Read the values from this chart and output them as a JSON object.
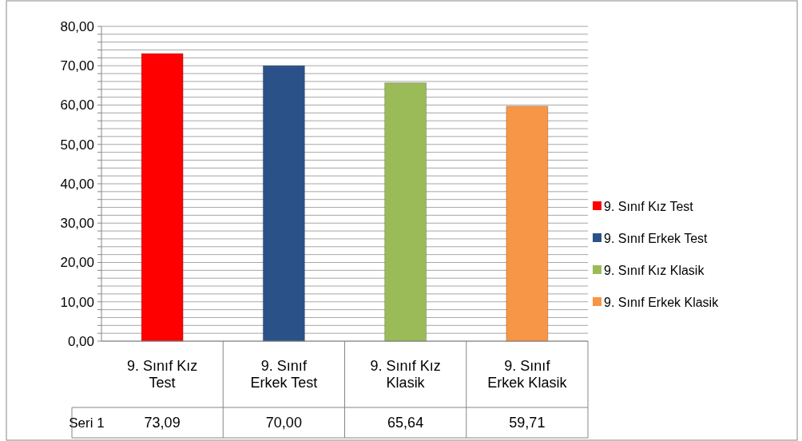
{
  "chart_data": {
    "type": "bar",
    "categories": [
      "9. Sınıf Kız Test",
      "9. Sınıf Erkek Test",
      "9. Sınıf Kız Klasik",
      "9. Sınıf Erkek Klasik"
    ],
    "colors": [
      "#ff0000",
      "#2a5289",
      "#9bbb59",
      "#f79646"
    ],
    "values": [
      73.09,
      70.0,
      65.64,
      59.71
    ],
    "value_labels": [
      "73,09",
      "70,00",
      "65,64",
      "59,71"
    ],
    "annotations": [
      "Seri 1"
    ],
    "ylim": [
      0,
      80
    ],
    "yticks": [
      {
        "value": 0,
        "label": "0,00"
      },
      {
        "value": 2,
        "label": null
      },
      {
        "value": 4,
        "label": null
      },
      {
        "value": 6,
        "label": null
      },
      {
        "value": 8,
        "label": null
      },
      {
        "value": 10,
        "label": "10,00"
      },
      {
        "value": 12,
        "label": null
      },
      {
        "value": 14,
        "label": null
      },
      {
        "value": 16,
        "label": null
      },
      {
        "value": 18,
        "label": null
      },
      {
        "value": 20,
        "label": "20,00"
      },
      {
        "value": 22,
        "label": null
      },
      {
        "value": 24,
        "label": null
      },
      {
        "value": 26,
        "label": null
      },
      {
        "value": 28,
        "label": null
      },
      {
        "value": 30,
        "label": "30,00"
      },
      {
        "value": 32,
        "label": null
      },
      {
        "value": 34,
        "label": null
      },
      {
        "value": 36,
        "label": null
      },
      {
        "value": 38,
        "label": null
      },
      {
        "value": 40,
        "label": "40,00"
      },
      {
        "value": 42,
        "label": null
      },
      {
        "value": 44,
        "label": null
      },
      {
        "value": 46,
        "label": null
      },
      {
        "value": 48,
        "label": null
      },
      {
        "value": 50,
        "label": "50,00"
      },
      {
        "value": 52,
        "label": null
      },
      {
        "value": 54,
        "label": null
      },
      {
        "value": 56,
        "label": null
      },
      {
        "value": 58,
        "label": null
      },
      {
        "value": 60,
        "label": "60,00"
      },
      {
        "value": 62,
        "label": null
      },
      {
        "value": 64,
        "label": null
      },
      {
        "value": 66,
        "label": null
      },
      {
        "value": 68,
        "label": null
      },
      {
        "value": 70,
        "label": "70,00"
      },
      {
        "value": 72,
        "label": null
      },
      {
        "value": 74,
        "label": null
      },
      {
        "value": 76,
        "label": null
      },
      {
        "value": 78,
        "label": null
      },
      {
        "value": 80,
        "label": "80,00"
      }
    ],
    "grid": "y"
  }
}
